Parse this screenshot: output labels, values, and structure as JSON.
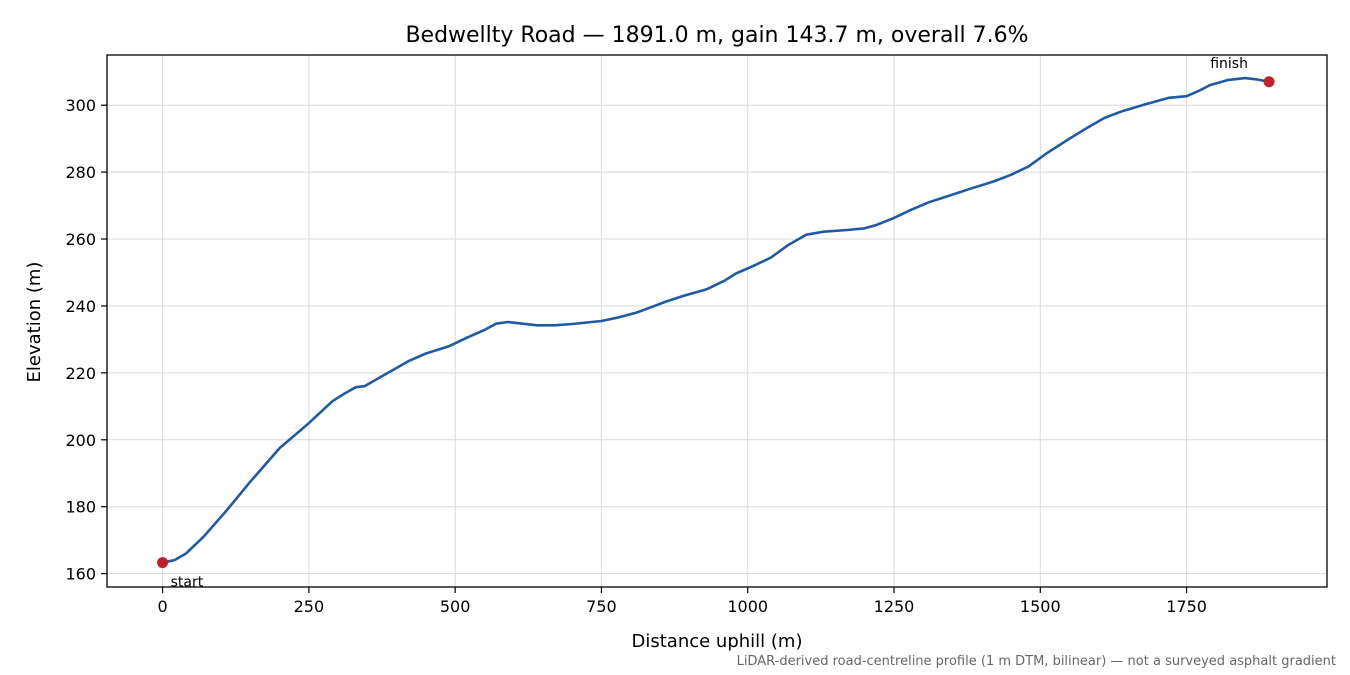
{
  "chart_data": {
    "type": "line",
    "title": "Bedwellty Road — 1891.0 m, gain 143.7 m, overall 7.6%",
    "xlabel": "Distance uphill (m)",
    "ylabel": "Elevation (m)",
    "xlim": [
      -95,
      1990
    ],
    "ylim": [
      156,
      315
    ],
    "xticks": [
      0,
      250,
      500,
      750,
      1000,
      1250,
      1500,
      1750
    ],
    "yticks": [
      160,
      180,
      200,
      220,
      240,
      260,
      280,
      300
    ],
    "grid": true,
    "series": [
      {
        "color": "#1f5aa6",
        "x": [
          0,
          20,
          40,
          70,
          110,
          150,
          200,
          250,
          290,
          310,
          330,
          345,
          360,
          390,
          420,
          450,
          490,
          520,
          550,
          570,
          590,
          610,
          640,
          670,
          700,
          750,
          780,
          810,
          830,
          860,
          890,
          930,
          960,
          980,
          1010,
          1040,
          1070,
          1100,
          1130,
          1170,
          1200,
          1220,
          1250,
          1280,
          1310,
          1340,
          1380,
          1420,
          1450,
          1480,
          1510,
          1550,
          1580,
          1610,
          1640,
          1680,
          1720,
          1750,
          1770,
          1790,
          1820,
          1850,
          1870,
          1891
        ],
        "y": [
          163.3,
          164,
          166,
          171,
          179,
          187.5,
          197.5,
          205,
          211.5,
          213.7,
          215.7,
          216,
          217.5,
          220.5,
          223.5,
          225.8,
          228,
          230.5,
          232.8,
          234.7,
          235.2,
          234.8,
          234.2,
          234.2,
          234.6,
          235.5,
          236.6,
          238,
          239.3,
          241.3,
          243,
          245,
          247.5,
          249.7,
          252,
          254.5,
          258.3,
          261.3,
          262.2,
          262.7,
          263.2,
          264.2,
          266.3,
          268.8,
          271,
          272.7,
          275,
          277.2,
          279.2,
          281.7,
          285.5,
          290,
          293.2,
          296.2,
          298.2,
          300.3,
          302.2,
          302.7,
          304.2,
          306,
          307.5,
          308.1,
          307.7,
          307
        ]
      }
    ],
    "markers": [
      {
        "x": 0,
        "y": 163.3,
        "label": "start",
        "color": "#c0202a"
      },
      {
        "x": 1891,
        "y": 307,
        "label": "finish",
        "color": "#c0202a"
      }
    ],
    "footnote": "LiDAR-derived road-centreline profile (1 m DTM, bilinear) — not a surveyed asphalt gradient"
  }
}
